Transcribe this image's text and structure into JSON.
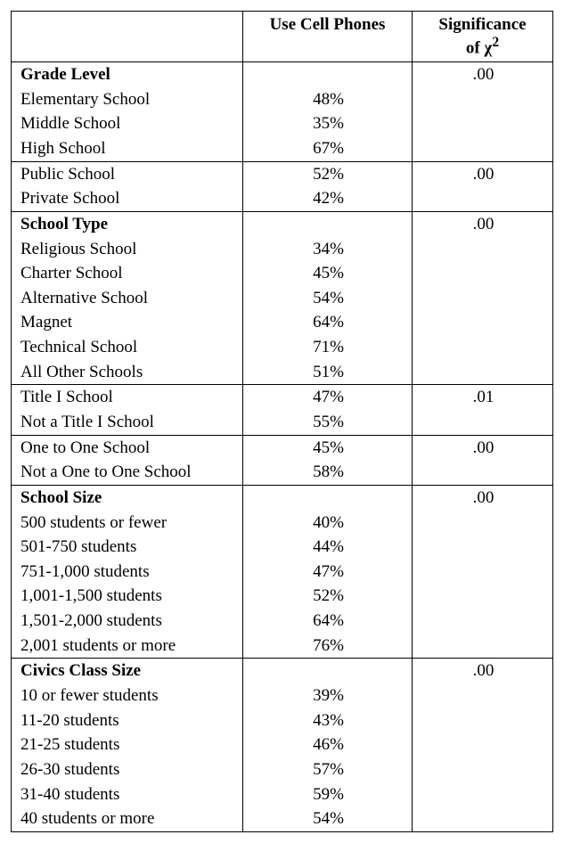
{
  "columns": {
    "label": "",
    "value": "Use Cell Phones",
    "sig_line1": "Significance",
    "sig_line2": "of χ",
    "sig_sup": "2"
  },
  "groups": [
    {
      "header": "Grade Level",
      "significance": ".00",
      "rows": [
        {
          "label": "Elementary School",
          "value": "48%"
        },
        {
          "label": "Middle School",
          "value": "35%"
        },
        {
          "label": "High School",
          "value": "67%"
        }
      ]
    },
    {
      "header": null,
      "significance": ".00",
      "rows": [
        {
          "label": "Public School",
          "value": "52%"
        },
        {
          "label": "Private School",
          "value": "42%"
        }
      ]
    },
    {
      "header": "School Type",
      "significance": ".00",
      "rows": [
        {
          "label": "Religious School",
          "value": "34%"
        },
        {
          "label": "Charter School",
          "value": "45%"
        },
        {
          "label": "Alternative School",
          "value": "54%"
        },
        {
          "label": "Magnet",
          "value": "64%"
        },
        {
          "label": "Technical School",
          "value": "71%"
        },
        {
          "label": "All Other Schools",
          "value": "51%"
        }
      ]
    },
    {
      "header": null,
      "significance": ".01",
      "rows": [
        {
          "label": "Title I School",
          "value": "47%"
        },
        {
          "label": "Not a Title I School",
          "value": "55%"
        }
      ]
    },
    {
      "header": null,
      "significance": ".00",
      "rows": [
        {
          "label": "One to One School",
          "value": "45%"
        },
        {
          "label": "Not a One to One School",
          "value": "58%"
        }
      ]
    },
    {
      "header": "School Size",
      "significance": ".00",
      "rows": [
        {
          "label": "500 students or fewer",
          "value": "40%"
        },
        {
          "label": "501-750 students",
          "value": "44%"
        },
        {
          "label": "751-1,000 students",
          "value": "47%"
        },
        {
          "label": "1,001-1,500 students",
          "value": "52%"
        },
        {
          "label": "1,501-2,000 students",
          "value": "64%"
        },
        {
          "label": "2,001 students or more",
          "value": "76%"
        }
      ]
    },
    {
      "header": "Civics Class Size",
      "significance": ".00",
      "rows": [
        {
          "label": "10 or fewer students",
          "value": "39%"
        },
        {
          "label": "11-20 students",
          "value": "43%"
        },
        {
          "label": "21-25 students",
          "value": "46%"
        },
        {
          "label": "26-30 students",
          "value": "57%"
        },
        {
          "label": "31-40 students",
          "value": "59%"
        },
        {
          "label": "40 students or more",
          "value": "54%"
        }
      ]
    }
  ]
}
